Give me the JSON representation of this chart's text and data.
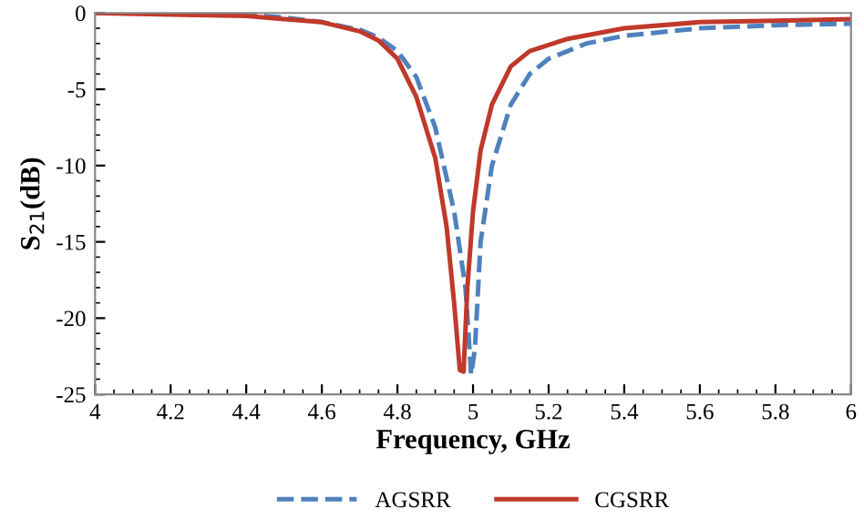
{
  "chart_data": {
    "type": "line",
    "xlabel": "Frequency, GHz",
    "ylabel": "S$_{21}$(dB)",
    "xlim": [
      4,
      6
    ],
    "xticks": [
      4,
      {
        "value": 4.2,
        "label": "4.2"
      },
      {
        "value": 4.4,
        "label": "4.4"
      },
      {
        "value": 4.6,
        "label": "4.6"
      },
      {
        "value": 4.8,
        "label": "4.8"
      },
      5,
      {
        "value": 5.2,
        "label": "5.2"
      },
      {
        "value": 5.4,
        "label": "5.4"
      },
      {
        "value": 5.6,
        "label": "5.6"
      },
      {
        "value": 5.8,
        "label": "5.8"
      },
      6
    ],
    "ylim": [
      -25,
      0
    ],
    "yticks": [
      -25,
      -20,
      -15,
      -10,
      -5,
      0
    ],
    "grid": false,
    "legend": "bottom",
    "marker": "none",
    "series": [
      {
        "name": "AGSRR",
        "color": "#4f81bd",
        "line_style": "dashed",
        "x": [
          4,
          4.2,
          4.4,
          4.5,
          4.6,
          4.7,
          4.75,
          4.8,
          4.85,
          4.9,
          4.95,
          4.98,
          4.995,
          5.005,
          5.02,
          5.05,
          5.1,
          5.15,
          5.2,
          5.3,
          5.4,
          5.6,
          5.8,
          6
        ],
        "values": [
          0,
          -0.05,
          -0.1,
          -0.3,
          -0.6,
          -1.1,
          -1.6,
          -2.5,
          -4.2,
          -7.5,
          -13,
          -18,
          -23.7,
          -22,
          -15,
          -10,
          -6,
          -4,
          -3,
          -2,
          -1.5,
          -1,
          -0.8,
          -0.7
        ]
      },
      {
        "name": "CGSRR",
        "color": "#c0392b",
        "line_style": "solid",
        "x": [
          4,
          4.2,
          4.4,
          4.5,
          4.6,
          4.7,
          4.75,
          4.8,
          4.85,
          4.9,
          4.93,
          4.95,
          4.965,
          4.975,
          4.985,
          5.0,
          5.02,
          5.05,
          5.1,
          5.15,
          5.25,
          5.4,
          5.6,
          5.8,
          6
        ],
        "values": [
          0,
          -0.1,
          -0.2,
          -0.4,
          -0.6,
          -1.2,
          -1.8,
          -3,
          -5.5,
          -9.5,
          -14,
          -19,
          -23.4,
          -23.5,
          -18,
          -13,
          -9,
          -6,
          -3.5,
          -2.5,
          -1.7,
          -1,
          -0.6,
          -0.5,
          -0.4
        ]
      }
    ]
  }
}
